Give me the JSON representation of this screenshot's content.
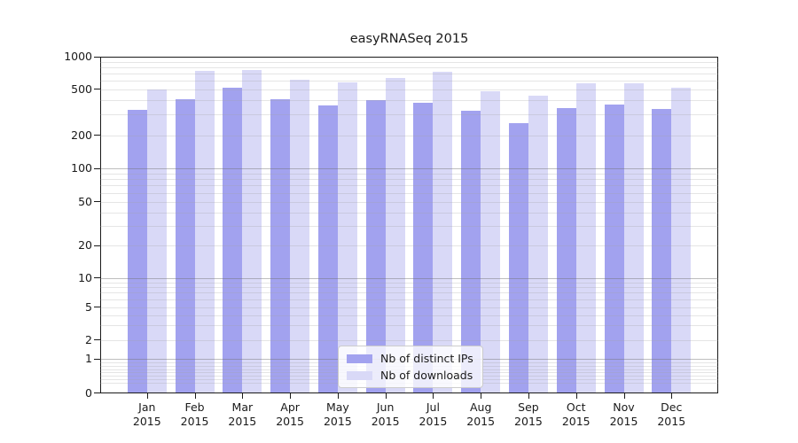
{
  "chart_data": {
    "type": "bar",
    "title": "easyRNASeq 2015",
    "categories": [
      "Jan",
      "Feb",
      "Mar",
      "Apr",
      "May",
      "Jun",
      "Jul",
      "Aug",
      "Sep",
      "Oct",
      "Nov",
      "Dec"
    ],
    "category_year": "2015",
    "series": [
      {
        "name": "Nb of distinct IPs",
        "color": "#a2a2ef",
        "values": [
          333,
          408,
          519,
          408,
          359,
          401,
          383,
          323,
          253,
          342,
          370,
          335
        ]
      },
      {
        "name": "Nb of downloads",
        "color": "#d9d9f7",
        "values": [
          498,
          737,
          755,
          616,
          576,
          636,
          724,
          475,
          435,
          569,
          569,
          519
        ]
      }
    ],
    "ylabel": "",
    "xlabel": "",
    "ylim": [
      0,
      1000
    ],
    "yticks": [
      1000,
      500,
      200,
      100,
      50,
      20,
      10,
      5,
      2,
      1,
      0
    ],
    "yscale": "log-like (compressed toward zero)",
    "grid": "horizontal log minor + major gridlines",
    "legend_position": "lower center"
  }
}
